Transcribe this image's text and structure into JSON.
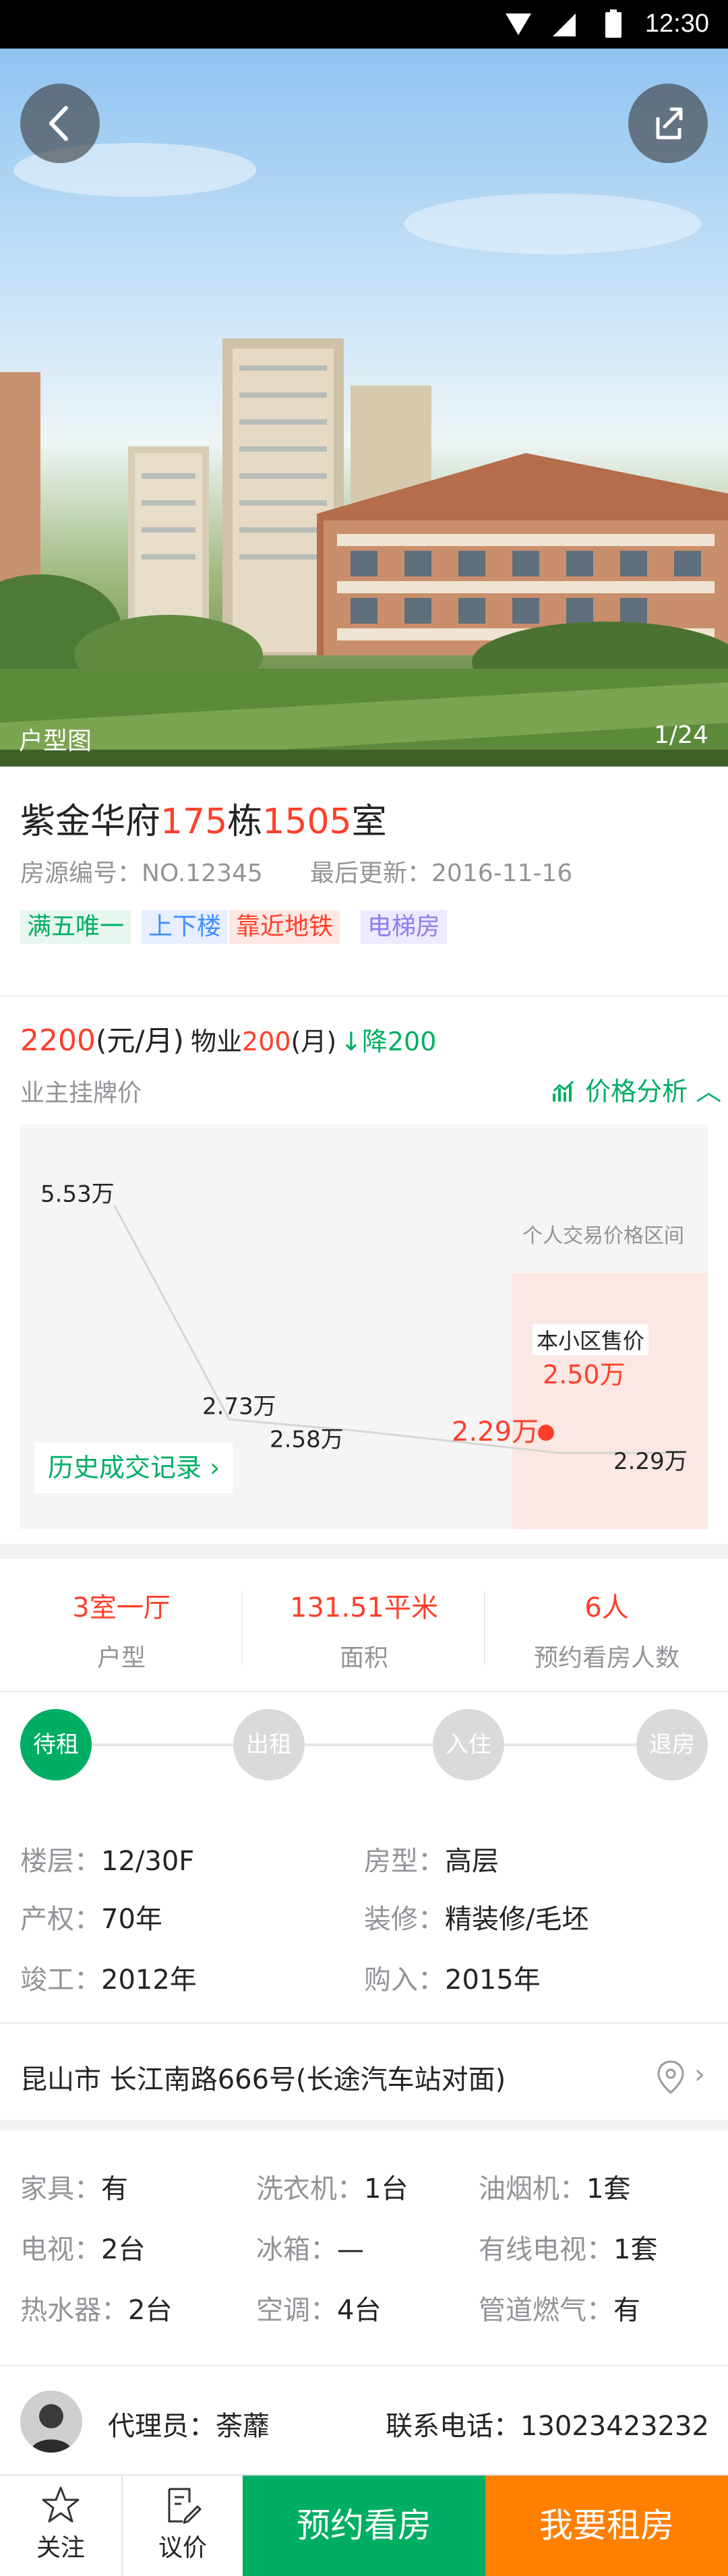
{
  "status_bar": {
    "time": "12:30"
  },
  "hero": {
    "caption": "户型图",
    "counter": "1/24"
  },
  "listing": {
    "title_prefix": "紫金华府",
    "title_building": "175",
    "title_mid": "栋",
    "title_room": "1505",
    "title_suffix": "室",
    "id_label": "房源编号：",
    "id_value": "NO.12345",
    "update_label": "最后更新：",
    "update_value": "2016-11-16",
    "tags": [
      "满五唯一",
      "上下楼",
      "靠近地铁",
      "电梯房"
    ],
    "price_value": "2200",
    "price_unit": "(元/月)",
    "fee_label": "物业",
    "fee_value": "200",
    "fee_unit": "(月)",
    "drop_label": "降200"
  },
  "price_section": {
    "label": "业主挂牌价",
    "analysis_label": "价格分析"
  },
  "chart_data": {
    "type": "line",
    "title": "",
    "x": [
      1,
      2,
      3,
      4,
      5
    ],
    "y_labels": [
      "5.53万",
      "2.73万",
      "2.58万",
      "2.29万",
      "2.29万"
    ],
    "values": [
      5.53,
      2.73,
      2.58,
      2.29,
      2.29
    ],
    "unit": "万",
    "ylim": [
      2.0,
      5.8
    ],
    "range_label": "个人交易价格区间",
    "community_label": "本小区售价",
    "community_price": "2.50万",
    "highlight_value": "2.29万",
    "history_button": "历史成交记录",
    "colors": {
      "line": "#d6d6d6",
      "highlight": "#ff3f29",
      "range": "#fde3df"
    }
  },
  "stats": [
    {
      "value": "3室一厅",
      "label": "户型"
    },
    {
      "value": "131.51平米",
      "label": "面积"
    },
    {
      "value": "6人",
      "label": "预约看房人数"
    }
  ],
  "progress": [
    {
      "label": "待租",
      "active": true
    },
    {
      "label": "出租",
      "active": false
    },
    {
      "label": "入住",
      "active": false
    },
    {
      "label": "退房",
      "active": false
    }
  ],
  "details": [
    {
      "k": "楼层：",
      "v": "12/30F"
    },
    {
      "k": "房型：",
      "v": "高层"
    },
    {
      "k": "产权：",
      "v": "70年"
    },
    {
      "k": "装修：",
      "v": "精装修/毛坯"
    },
    {
      "k": "竣工：",
      "v": "2012年"
    },
    {
      "k": "购入：",
      "v": "2015年"
    }
  ],
  "address": "昆山市 长江南路666号(长途汽车站对面)",
  "facilities": [
    {
      "k": "家具：",
      "v": "有"
    },
    {
      "k": "洗衣机：",
      "v": "1台"
    },
    {
      "k": "油烟机：",
      "v": "1套"
    },
    {
      "k": "电视：",
      "v": "2台"
    },
    {
      "k": "冰箱：",
      "v": "—"
    },
    {
      "k": "有线电视：",
      "v": "1套"
    },
    {
      "k": "热水器：",
      "v": "2台"
    },
    {
      "k": "空调：",
      "v": "4台"
    },
    {
      "k": "管道燃气：",
      "v": "有"
    }
  ],
  "agent": {
    "label": "代理员：",
    "name": "荼蘼",
    "phone_label": "联系电话：",
    "phone": "13023423232"
  },
  "bottom_bar": {
    "follow": "关注",
    "negotiate": "议价",
    "book": "预约看房",
    "rent": "我要租房",
    "colors": {
      "book": "#00ae63",
      "rent": "#ff7f00"
    }
  }
}
